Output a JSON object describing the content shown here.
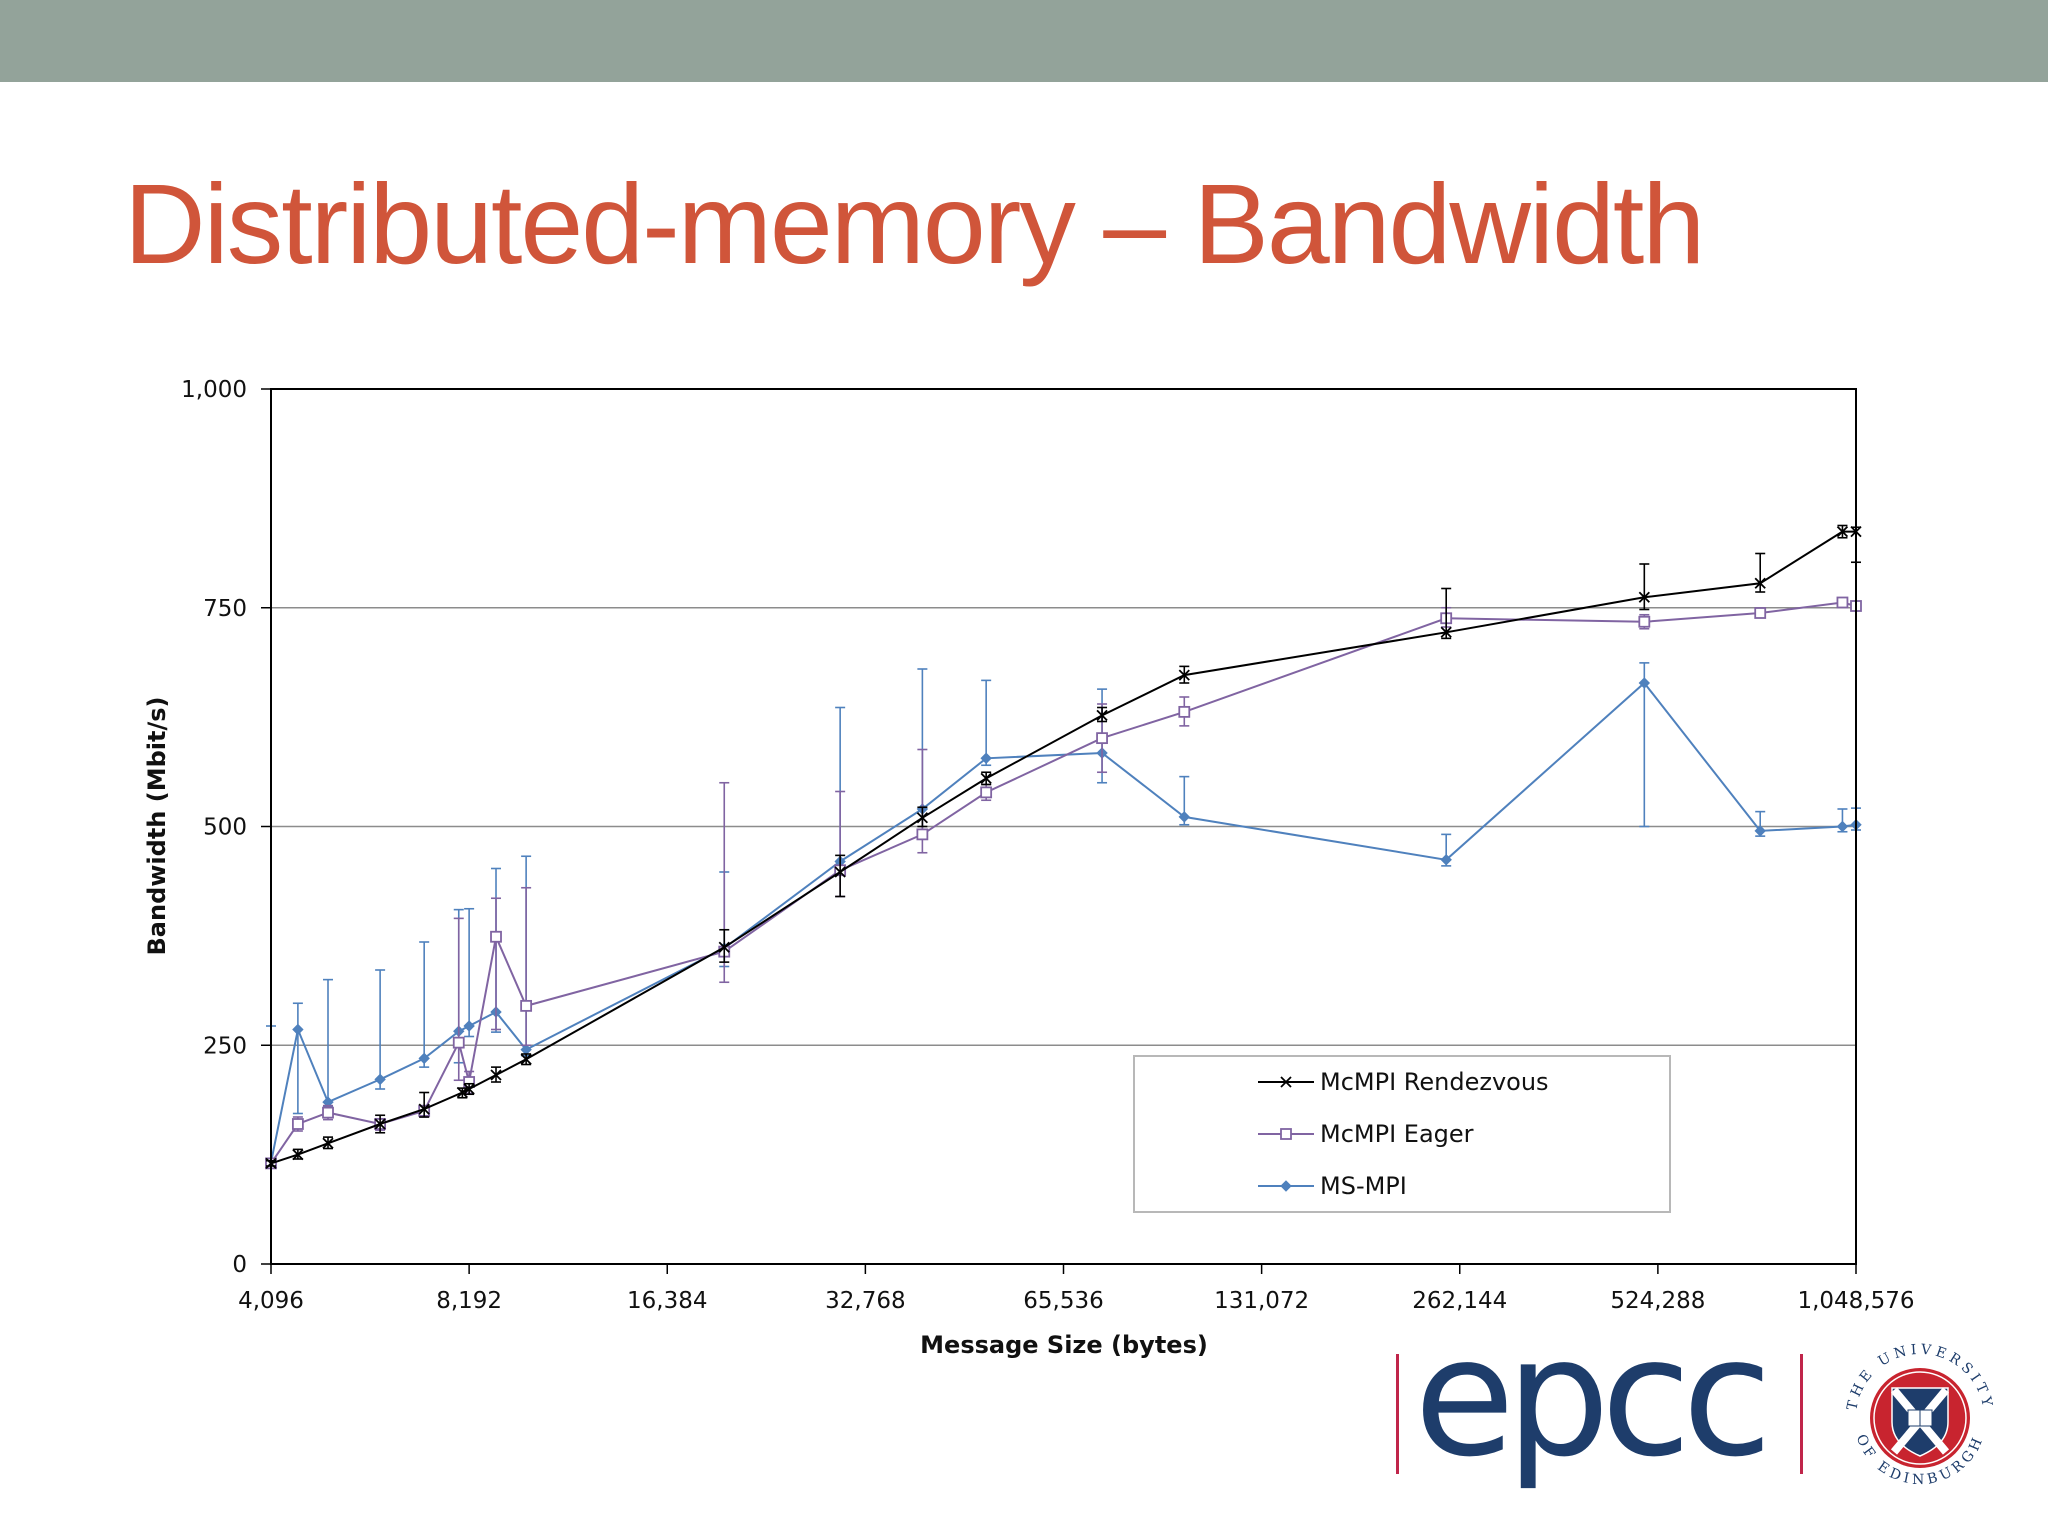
{
  "slide": {
    "title": "Distributed-memory – Bandwidth",
    "title_color": "#d0553a",
    "header_bar_color": "#93a39a"
  },
  "chart_data": {
    "type": "line",
    "xlabel": "Message Size (bytes)",
    "ylabel": "Bandwidth (Mbit/s)",
    "x_scale": "log2",
    "x_ticks": [
      4096,
      8192,
      16384,
      32768,
      65536,
      131072,
      262144,
      524288,
      1048576
    ],
    "x_tick_labels": [
      "4,096",
      "8,192",
      "16,384",
      "32,768",
      "65,536",
      "131,072",
      "262,144",
      "524,288",
      "1,048,576"
    ],
    "xlim": [
      4096,
      1048576
    ],
    "ylim": [
      0,
      1000
    ],
    "y_ticks": [
      0,
      250,
      500,
      750,
      1000
    ],
    "y_tick_labels": [
      "0",
      "250",
      "500",
      "750",
      "1,000"
    ],
    "gridlines": "horizontal",
    "legend": "lower-right",
    "series": [
      {
        "name": "McMPI Rendezvous",
        "color": "#000000",
        "marker": "x",
        "points": [
          {
            "x": 4096,
            "y": 115,
            "lo": 112,
            "hi": 118
          },
          {
            "x": 4500,
            "y": 125,
            "lo": 120,
            "hi": 131
          },
          {
            "x": 5000,
            "y": 138,
            "lo": 132,
            "hi": 145
          },
          {
            "x": 6000,
            "y": 160,
            "lo": 150,
            "hi": 170
          },
          {
            "x": 7000,
            "y": 177,
            "lo": 168,
            "hi": 196
          },
          {
            "x": 8000,
            "y": 196,
            "lo": 190,
            "hi": 201
          },
          {
            "x": 8192,
            "y": 200,
            "lo": 194,
            "hi": 206
          },
          {
            "x": 9000,
            "y": 216,
            "lo": 208,
            "hi": 225
          },
          {
            "x": 10000,
            "y": 234,
            "lo": 228,
            "hi": 240
          },
          {
            "x": 20000,
            "y": 362,
            "lo": 345,
            "hi": 382
          },
          {
            "x": 30000,
            "y": 448,
            "lo": 420,
            "hi": 467
          },
          {
            "x": 40000,
            "y": 510,
            "lo": 500,
            "hi": 522
          },
          {
            "x": 50000,
            "y": 555,
            "lo": 548,
            "hi": 562
          },
          {
            "x": 75000,
            "y": 627,
            "lo": 620,
            "hi": 636
          },
          {
            "x": 100000,
            "y": 673,
            "lo": 664,
            "hi": 683
          },
          {
            "x": 250000,
            "y": 722,
            "lo": 715,
            "hi": 772
          },
          {
            "x": 500000,
            "y": 762,
            "lo": 748,
            "hi": 800
          },
          {
            "x": 750000,
            "y": 778,
            "lo": 768,
            "hi": 812
          },
          {
            "x": 1000000,
            "y": 837,
            "lo": 830,
            "hi": 844
          },
          {
            "x": 1048576,
            "y": 837,
            "lo": 802,
            "hi": 842
          }
        ]
      },
      {
        "name": "McMPI Eager",
        "color": "#8064a2",
        "marker": "square",
        "points": [
          {
            "x": 4096,
            "y": 115,
            "lo": 110,
            "hi": 120
          },
          {
            "x": 4500,
            "y": 160,
            "lo": 152,
            "hi": 168
          },
          {
            "x": 5000,
            "y": 173,
            "lo": 165,
            "hi": 181
          },
          {
            "x": 6000,
            "y": 160,
            "lo": 153,
            "hi": 166
          },
          {
            "x": 7000,
            "y": 175,
            "lo": 168,
            "hi": 181
          },
          {
            "x": 7900,
            "y": 253,
            "lo": 210,
            "hi": 395
          },
          {
            "x": 8192,
            "y": 208,
            "lo": 195,
            "hi": 220
          },
          {
            "x": 9000,
            "y": 374,
            "lo": 268,
            "hi": 418
          },
          {
            "x": 10000,
            "y": 295,
            "lo": 250,
            "hi": 430
          },
          {
            "x": 20000,
            "y": 357,
            "lo": 322,
            "hi": 550
          },
          {
            "x": 30000,
            "y": 450,
            "lo": 420,
            "hi": 540
          },
          {
            "x": 40000,
            "y": 491,
            "lo": 470,
            "hi": 588
          },
          {
            "x": 50000,
            "y": 539,
            "lo": 530,
            "hi": 548
          },
          {
            "x": 75000,
            "y": 601,
            "lo": 562,
            "hi": 640
          },
          {
            "x": 100000,
            "y": 631,
            "lo": 615,
            "hi": 648
          },
          {
            "x": 250000,
            "y": 738,
            "lo": 728,
            "hi": 750
          },
          {
            "x": 500000,
            "y": 734,
            "lo": 726,
            "hi": 742
          },
          {
            "x": 750000,
            "y": 744,
            "lo": 739,
            "hi": 749
          },
          {
            "x": 1000000,
            "y": 756,
            "lo": 752,
            "hi": 760
          },
          {
            "x": 1048576,
            "y": 752,
            "lo": 748,
            "hi": 756
          }
        ]
      },
      {
        "name": "MS-MPI",
        "color": "#4f81bd",
        "marker": "diamond",
        "points": [
          {
            "x": 4096,
            "y": 116,
            "lo": 112,
            "hi": 272
          },
          {
            "x": 4500,
            "y": 268,
            "lo": 172,
            "hi": 298
          },
          {
            "x": 5000,
            "y": 185,
            "lo": 180,
            "hi": 325
          },
          {
            "x": 6000,
            "y": 211,
            "lo": 200,
            "hi": 336
          },
          {
            "x": 7000,
            "y": 235,
            "lo": 225,
            "hi": 368
          },
          {
            "x": 7900,
            "y": 266,
            "lo": 230,
            "hi": 405
          },
          {
            "x": 8192,
            "y": 272,
            "lo": 260,
            "hi": 406
          },
          {
            "x": 9000,
            "y": 288,
            "lo": 265,
            "hi": 452
          },
          {
            "x": 10000,
            "y": 245,
            "lo": 238,
            "hi": 466
          },
          {
            "x": 20000,
            "y": 361,
            "lo": 340,
            "hi": 448
          },
          {
            "x": 30000,
            "y": 460,
            "lo": 450,
            "hi": 636
          },
          {
            "x": 40000,
            "y": 520,
            "lo": 495,
            "hi": 680
          },
          {
            "x": 50000,
            "y": 578,
            "lo": 570,
            "hi": 667
          },
          {
            "x": 75000,
            "y": 584,
            "lo": 550,
            "hi": 657
          },
          {
            "x": 100000,
            "y": 511,
            "lo": 502,
            "hi": 557
          },
          {
            "x": 250000,
            "y": 462,
            "lo": 455,
            "hi": 491
          },
          {
            "x": 500000,
            "y": 664,
            "lo": 500,
            "hi": 687
          },
          {
            "x": 750000,
            "y": 495,
            "lo": 489,
            "hi": 517
          },
          {
            "x": 1000000,
            "y": 500,
            "lo": 494,
            "hi": 520
          },
          {
            "x": 1048576,
            "y": 502,
            "lo": 496,
            "hi": 521
          }
        ]
      }
    ]
  },
  "logos": {
    "epcc_text": "epcc",
    "epcc_color": "#1e3d6b",
    "epcc_bar_color": "#c0254a",
    "seal_text": "THE UNIVERSITY OF EDINBURGH"
  }
}
